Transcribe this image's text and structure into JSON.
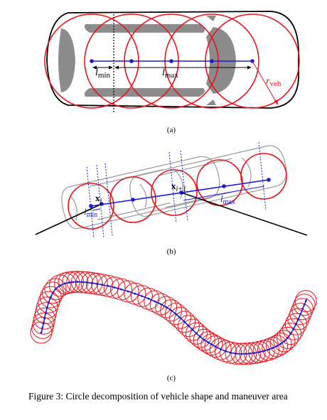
{
  "caption": "Figure 3: Circle decomposition of vehicle shape and maneuver area",
  "panels": {
    "a": {
      "label": "(a)",
      "l_min_sym": "l",
      "l_min_sub": "min",
      "l_max_sym": "l",
      "l_max_sub": "max",
      "r_veh_sym": "r",
      "r_veh_sub": "veh"
    },
    "b": {
      "label": "(b)",
      "x_i_sym": "x",
      "x_i_sub": "i",
      "x_i1_sym": "x",
      "x_i1_sub": "i+1",
      "l_min_sym": "l",
      "l_min_sub": "min",
      "l_max_sym": "l",
      "l_max_sub": "max"
    },
    "c": {
      "label": "(c)"
    }
  },
  "colors": {
    "circle": "#e8141c",
    "path": "#1a1acc",
    "vehicle_outline": "#000000",
    "vehicle_gray": "#8c8c8c",
    "ghost_gray": "#9a9a9a"
  }
}
